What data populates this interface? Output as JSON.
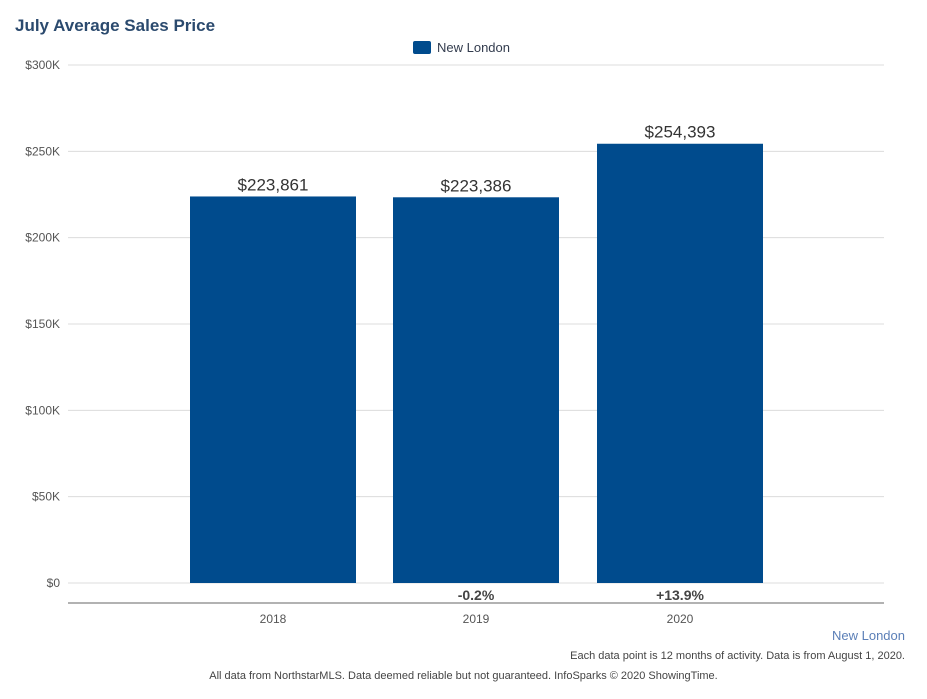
{
  "chart_data": {
    "type": "bar",
    "title": "July Average Sales Price",
    "categories": [
      "2018",
      "2019",
      "2020"
    ],
    "series": [
      {
        "name": "New London",
        "values": [
          223861,
          223386,
          254393
        ],
        "labels": [
          "$223,861",
          "$223,386",
          "$254,393"
        ],
        "color": "#004b8d"
      }
    ],
    "changes": [
      "",
      "-0.2%",
      "+13.9%"
    ],
    "ylim": [
      0,
      300000
    ],
    "yticks": [
      {
        "value": 0,
        "label": "$0"
      },
      {
        "value": 50000,
        "label": "$50K"
      },
      {
        "value": 100000,
        "label": "$100K"
      },
      {
        "value": 150000,
        "label": "$150K"
      },
      {
        "value": 200000,
        "label": "$200K"
      },
      {
        "value": 250000,
        "label": "$250K"
      },
      {
        "value": 300000,
        "label": "$300K"
      }
    ],
    "grid": true,
    "legend": "top-center"
  },
  "region_link": "New London",
  "note": "Each data point is 12 months of activity. Data is from August 1, 2020.",
  "footer": "All data from NorthstarMLS. Data deemed reliable but not guaranteed. InfoSparks © 2020 ShowingTime."
}
